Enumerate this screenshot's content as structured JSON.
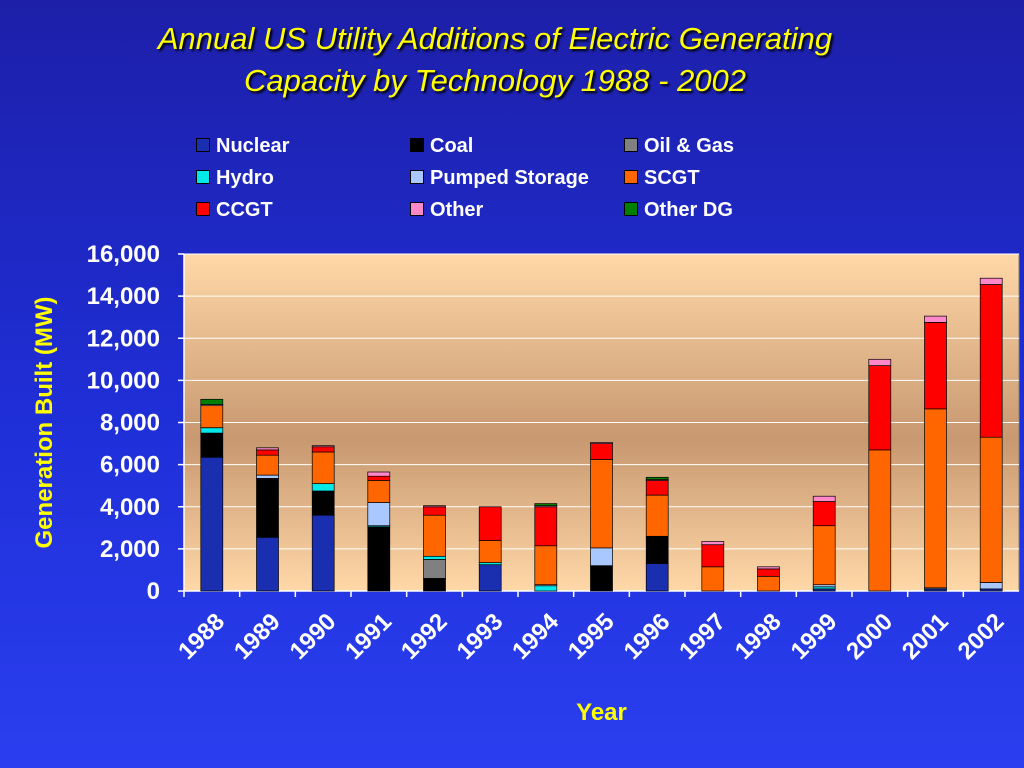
{
  "title_line1": "Annual US Utility Additions of Electric Generating",
  "title_line2": "Capacity by Technology  1988 - 2002",
  "colors": {
    "background": "#1f2fd8",
    "plot_area": "#d8a878",
    "title": "#ffff00",
    "text": "#ffffff"
  },
  "chart_data": {
    "type": "bar",
    "stacked": true,
    "categories": [
      "1988",
      "1989",
      "1990",
      "1991",
      "1992",
      "1993",
      "1994",
      "1995",
      "1996",
      "1997",
      "1998",
      "1999",
      "2000",
      "2001",
      "2002"
    ],
    "xlabel": "Year",
    "ylabel": "Generation Built (MW)",
    "ylim": [
      0,
      16000
    ],
    "yticks": [
      "0",
      "2,000",
      "4,000",
      "6,000",
      "8,000",
      "10,000",
      "12,000",
      "14,000",
      "16,000"
    ],
    "grid": true,
    "legend_position": "top",
    "series": [
      {
        "name": "Nuclear",
        "color": "#1a2fb0",
        "values": [
          6350,
          2550,
          3600,
          0,
          0,
          1250,
          0,
          0,
          1300,
          0,
          0,
          100,
          0,
          100,
          100
        ]
      },
      {
        "name": "Coal",
        "color": "#000000",
        "values": [
          1150,
          2800,
          1150,
          3050,
          600,
          0,
          0,
          1200,
          1300,
          0,
          0,
          0,
          0,
          0,
          0
        ]
      },
      {
        "name": "Oil & Gas",
        "color": "#808080",
        "values": [
          0,
          0,
          0,
          0,
          900,
          0,
          0,
          0,
          0,
          0,
          0,
          0,
          0,
          0,
          0
        ]
      },
      {
        "name": "Hydro",
        "color": "#00e8e8",
        "values": [
          250,
          0,
          350,
          50,
          150,
          100,
          250,
          0,
          0,
          0,
          0,
          100,
          0,
          0,
          0
        ]
      },
      {
        "name": "Pumped Storage",
        "color": "#a8c8ff",
        "values": [
          0,
          150,
          0,
          1100,
          0,
          0,
          50,
          850,
          0,
          0,
          0,
          100,
          0,
          50,
          300
        ]
      },
      {
        "name": "SCGT",
        "color": "#ff6600",
        "values": [
          1050,
          950,
          1500,
          1050,
          1950,
          1050,
          1850,
          4200,
          1950,
          1150,
          700,
          2800,
          6700,
          8500,
          6900
        ]
      },
      {
        "name": "CCGT",
        "color": "#ff0000",
        "values": [
          0,
          250,
          250,
          200,
          400,
          1600,
          1850,
          750,
          700,
          1050,
          350,
          1150,
          4000,
          4100,
          7250
        ]
      },
      {
        "name": "Other",
        "color": "#ff88c8",
        "values": [
          50,
          100,
          50,
          200,
          50,
          0,
          50,
          50,
          50,
          150,
          100,
          250,
          300,
          300,
          300
        ]
      },
      {
        "name": "Other DG",
        "color": "#008000",
        "values": [
          250,
          0,
          0,
          0,
          0,
          0,
          100,
          0,
          100,
          0,
          0,
          0,
          0,
          0,
          0
        ]
      }
    ]
  }
}
